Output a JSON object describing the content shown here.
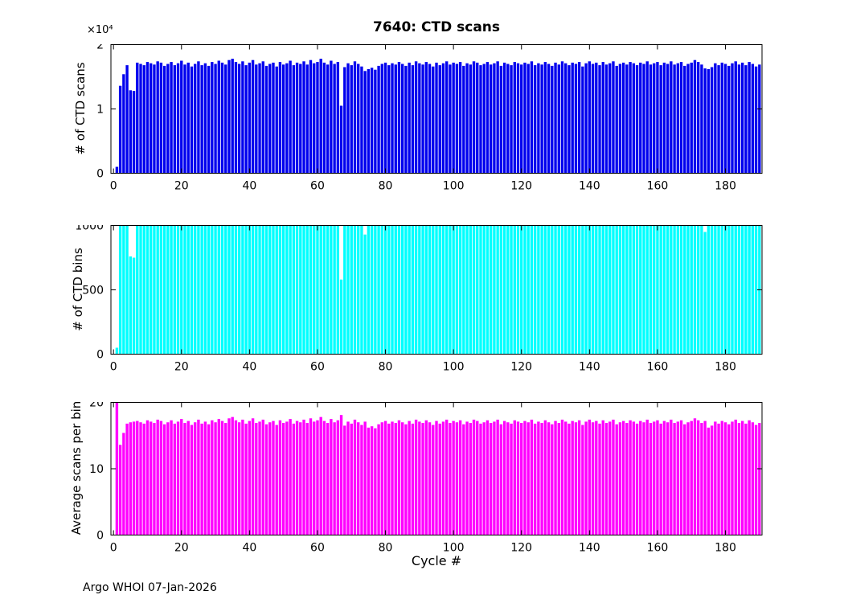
{
  "figure": {
    "title": "7640: CTD scans",
    "xlabel": "Cycle #",
    "footer": "Argo WHOI 07-Jan-2026",
    "background": "#ffffff"
  },
  "chart_data": [
    {
      "type": "bar",
      "title": "7640: CTD scans",
      "ylabel": "# of CTD scans",
      "exponent_label": "×10⁴",
      "color": "#0000ee",
      "ylim": [
        0,
        20000
      ],
      "yticks": [
        0,
        10000,
        20000
      ],
      "ytick_labels": [
        "0",
        "1",
        "2"
      ],
      "xlim": [
        -0.75,
        190.75
      ],
      "xticks": [
        0,
        20,
        40,
        60,
        80,
        100,
        120,
        140,
        160,
        180
      ],
      "x_start": 1,
      "grid": false,
      "legend": null,
      "values": [
        1000,
        13600,
        15400,
        16800,
        12900,
        12800,
        17200,
        17000,
        16800,
        17300,
        17100,
        16900,
        17400,
        17200,
        16700,
        17000,
        17300,
        16800,
        17100,
        17500,
        16900,
        17200,
        16600,
        17000,
        17400,
        16800,
        17100,
        16700,
        17300,
        17000,
        17500,
        17200,
        16900,
        17600,
        17800,
        17300,
        17000,
        17400,
        16800,
        17200,
        17600,
        16900,
        17100,
        17400,
        16700,
        17000,
        17200,
        16600,
        17300,
        16900,
        17100,
        17500,
        16800,
        17200,
        17000,
        17400,
        16900,
        17600,
        17100,
        17300,
        17800,
        17200,
        16900,
        17500,
        17000,
        17300,
        10500,
        16500,
        17100,
        16800,
        17400,
        17000,
        16600,
        15900,
        16200,
        16400,
        16100,
        16700,
        17000,
        17200,
        16800,
        17100,
        16900,
        17300,
        17000,
        16700,
        17200,
        16800,
        17400,
        17100,
        16900,
        17300,
        17000,
        16600,
        17200,
        16800,
        17100,
        17400,
        16900,
        17200,
        17000,
        17300,
        16700,
        17100,
        16900,
        17400,
        17200,
        16800,
        17000,
        17300,
        16900,
        17100,
        17400,
        16700,
        17200,
        17000,
        16800,
        17300,
        17100,
        16900,
        17200,
        17000,
        17400,
        16800,
        17100,
        16900,
        17300,
        17000,
        16700,
        17200,
        16900,
        17400,
        17100,
        16800,
        17200,
        17000,
        17300,
        16600,
        17100,
        17400,
        17000,
        17200,
        16800,
        17300,
        16900,
        17100,
        17400,
        16700,
        17000,
        17200,
        16900,
        17300,
        17100,
        16800,
        17200,
        17000,
        17400,
        16900,
        17100,
        17300,
        16800,
        17200,
        17000,
        17400,
        16900,
        17100,
        17300,
        16700,
        17000,
        17200,
        17600,
        17300,
        16900,
        16300,
        16200,
        16500,
        17100,
        16800,
        17200,
        17000,
        16700,
        17100,
        17400,
        16900,
        17200,
        16800,
        17300,
        17000,
        16600,
        16900
      ]
    },
    {
      "type": "bar",
      "ylabel": "# of CTD bins",
      "color": "#00ffff",
      "ylim": [
        0,
        1000
      ],
      "yticks": [
        0,
        500,
        1000
      ],
      "ytick_labels": [
        "0",
        "500",
        "1000"
      ],
      "xlim": [
        -0.75,
        190.75
      ],
      "xticks": [
        0,
        20,
        40,
        60,
        80,
        100,
        120,
        140,
        160,
        180
      ],
      "x_start": 1,
      "grid": false,
      "legend": null,
      "values": [
        50,
        1000,
        1000,
        1000,
        760,
        750,
        1000,
        1000,
        1000,
        1000,
        1000,
        1000,
        1000,
        1000,
        1000,
        1000,
        1000,
        1000,
        1000,
        1000,
        1000,
        1000,
        1000,
        1000,
        1000,
        1000,
        1000,
        1000,
        1000,
        1000,
        1000,
        1000,
        1000,
        1000,
        1000,
        1000,
        1000,
        1000,
        1000,
        1000,
        1000,
        1000,
        1000,
        1000,
        1000,
        1000,
        1000,
        1000,
        1000,
        1000,
        1000,
        1000,
        1000,
        1000,
        1000,
        1000,
        1000,
        1000,
        1000,
        1000,
        1000,
        1000,
        1000,
        1000,
        1000,
        1000,
        580,
        1000,
        1000,
        1000,
        1000,
        1000,
        1000,
        930,
        1000,
        1000,
        1000,
        1000,
        1000,
        1000,
        1000,
        1000,
        1000,
        1000,
        1000,
        1000,
        1000,
        1000,
        1000,
        1000,
        1000,
        1000,
        1000,
        1000,
        1000,
        1000,
        1000,
        1000,
        1000,
        1000,
        1000,
        1000,
        1000,
        1000,
        1000,
        1000,
        1000,
        1000,
        1000,
        1000,
        1000,
        1000,
        1000,
        1000,
        1000,
        1000,
        1000,
        1000,
        1000,
        1000,
        1000,
        1000,
        1000,
        1000,
        1000,
        1000,
        1000,
        1000,
        1000,
        1000,
        1000,
        1000,
        1000,
        1000,
        1000,
        1000,
        1000,
        1000,
        1000,
        1000,
        1000,
        1000,
        1000,
        1000,
        1000,
        1000,
        1000,
        1000,
        1000,
        1000,
        1000,
        1000,
        1000,
        1000,
        1000,
        1000,
        1000,
        1000,
        1000,
        1000,
        1000,
        1000,
        1000,
        1000,
        1000,
        1000,
        1000,
        1000,
        1000,
        1000,
        1000,
        1000,
        1000,
        950,
        1000,
        1000,
        1000,
        1000,
        1000,
        1000,
        1000,
        1000,
        1000,
        1000,
        1000,
        1000,
        1000,
        1000,
        1000,
        1000
      ]
    },
    {
      "type": "bar",
      "ylabel": "Average scans per bin",
      "xlabel": "Cycle #",
      "color": "#ff00ff",
      "ylim": [
        0,
        20
      ],
      "yticks": [
        0,
        10,
        20
      ],
      "ytick_labels": [
        "0",
        "10",
        "20"
      ],
      "xlim": [
        -0.75,
        190.75
      ],
      "xticks": [
        0,
        20,
        40,
        60,
        80,
        100,
        120,
        140,
        160,
        180
      ],
      "x_start": 1,
      "grid": false,
      "legend": null,
      "values": [
        20,
        13.6,
        15.4,
        16.8,
        17,
        17.1,
        17.2,
        17,
        16.8,
        17.3,
        17.1,
        16.9,
        17.4,
        17.2,
        16.7,
        17,
        17.3,
        16.8,
        17.1,
        17.5,
        16.9,
        17.2,
        16.6,
        17,
        17.4,
        16.8,
        17.1,
        16.7,
        17.3,
        17,
        17.5,
        17.2,
        16.9,
        17.6,
        17.8,
        17.3,
        17,
        17.4,
        16.8,
        17.2,
        17.6,
        16.9,
        17.1,
        17.4,
        16.7,
        17,
        17.2,
        16.6,
        17.3,
        16.9,
        17.1,
        17.5,
        16.8,
        17.2,
        17,
        17.4,
        16.9,
        17.6,
        17.1,
        17.3,
        17.8,
        17.2,
        16.9,
        17.5,
        17,
        17.3,
        18.1,
        16.5,
        17.1,
        16.8,
        17.4,
        17,
        16.6,
        17.1,
        16.2,
        16.4,
        16.1,
        16.7,
        17,
        17.2,
        16.8,
        17.1,
        16.9,
        17.3,
        17,
        16.7,
        17.2,
        16.8,
        17.4,
        17.1,
        16.9,
        17.3,
        17,
        16.6,
        17.2,
        16.8,
        17.1,
        17.4,
        16.9,
        17.2,
        17,
        17.3,
        16.7,
        17.1,
        16.9,
        17.4,
        17.2,
        16.8,
        17,
        17.3,
        16.9,
        17.1,
        17.4,
        16.7,
        17.2,
        17,
        16.8,
        17.3,
        17.1,
        16.9,
        17.2,
        17,
        17.4,
        16.8,
        17.1,
        16.9,
        17.3,
        17,
        16.7,
        17.2,
        16.9,
        17.4,
        17.1,
        16.8,
        17.2,
        17,
        17.3,
        16.6,
        17.1,
        17.4,
        17,
        17.2,
        16.8,
        17.3,
        16.9,
        17.1,
        17.4,
        16.7,
        17,
        17.2,
        16.9,
        17.3,
        17.1,
        16.8,
        17.2,
        17,
        17.4,
        16.9,
        17.1,
        17.3,
        16.8,
        17.2,
        17,
        17.4,
        16.9,
        17.1,
        17.3,
        16.7,
        17,
        17.2,
        17.6,
        17.3,
        16.9,
        17.2,
        16.2,
        16.5,
        17.1,
        16.8,
        17.2,
        17,
        16.7,
        17.1,
        17.4,
        16.9,
        17.2,
        16.8,
        17.3,
        17,
        16.6,
        16.9
      ]
    }
  ]
}
